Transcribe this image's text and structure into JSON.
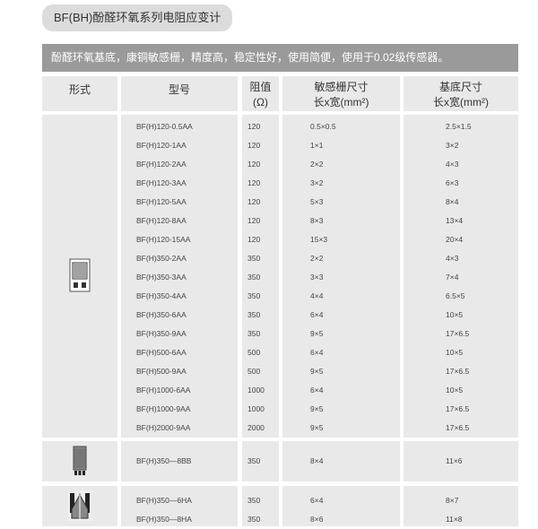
{
  "title": "BF(BH)酚醛环氧系列电阻应变计",
  "description": "酚醛环氧基底，康铜敏感栅，精度高，稳定性好，使用简便，使用于0.02级传感器。",
  "headers": {
    "form": "形式",
    "model": "型号",
    "res1": "阻值",
    "res2": "(Ω)",
    "grid1": "敏感栅尺寸",
    "grid2": "长x宽(mm²)",
    "base1": "基底尺寸",
    "base2": "长x宽(mm²)"
  },
  "groups": [
    {
      "icon": "strain-gauge-single-icon",
      "rows": [
        [
          "BF(H)120-0.5AA",
          "120",
          "0.5×0.5",
          "2.5×1.5"
        ],
        [
          "BF(H)120-1AA",
          "120",
          "1×1",
          "3×2"
        ],
        [
          "BF(H)120-2AA",
          "120",
          "2×2",
          "4×3"
        ],
        [
          "BF(H)120-3AA",
          "120",
          "3×2",
          "6×3"
        ],
        [
          "BF(H)120-5AA",
          "120",
          "5×3",
          "8×4"
        ],
        [
          "BF(H)120-8AA",
          "120",
          "8×3",
          "13×4"
        ],
        [
          "BF(H)120-15AA",
          "120",
          "15×3",
          "20×4"
        ],
        [
          "BF(H)350-2AA",
          "350",
          "2×2",
          "4×3"
        ],
        [
          "BF(H)350-3AA",
          "350",
          "3×3",
          "7×4"
        ],
        [
          "BF(H)350-4AA",
          "350",
          "4×4",
          "6.5×5"
        ],
        [
          "BF(H)350-6AA",
          "350",
          "6×4",
          "10×5"
        ],
        [
          "BF(H)350-9AA",
          "350",
          "9×5",
          "17×6.5"
        ],
        [
          "BF(H)500-6AA",
          "500",
          "6×4",
          "10×5"
        ],
        [
          "BF(H)500-9AA",
          "500",
          "9×5",
          "17×6.5"
        ],
        [
          "BF(H)1000-6AA",
          "1000",
          "6×4",
          "10×5"
        ],
        [
          "BF(H)1000-9AA",
          "1000",
          "9×5",
          "17×6.5"
        ],
        [
          "BF(H)2000-9AA",
          "2000",
          "9×5",
          "17×6.5"
        ]
      ]
    },
    {
      "icon": "strain-gauge-bb-icon",
      "rows": [
        [
          "BF(H)350—8BB",
          "350",
          "8×4",
          "11×6"
        ]
      ]
    },
    {
      "icon": "strain-gauge-shear-icon",
      "rows": [
        [
          "BF(H)350—6HA",
          "350",
          "6×4",
          "8×7"
        ],
        [
          "BF(H)350—8HA",
          "350",
          "8×6",
          "11×8"
        ]
      ]
    }
  ]
}
